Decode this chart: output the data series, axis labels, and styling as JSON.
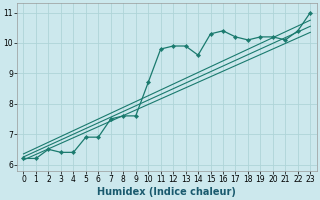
{
  "xlabel": "Humidex (Indice chaleur)",
  "bg_color": "#cce8ed",
  "line_color": "#1a7a6e",
  "grid_color": "#afd4d8",
  "xlim": [
    -0.5,
    23.5
  ],
  "ylim": [
    5.8,
    11.3
  ],
  "xticks": [
    0,
    1,
    2,
    3,
    4,
    5,
    6,
    7,
    8,
    9,
    10,
    11,
    12,
    13,
    14,
    15,
    16,
    17,
    18,
    19,
    20,
    21,
    22,
    23
  ],
  "yticks": [
    6,
    7,
    8,
    9,
    10,
    11
  ],
  "curve_x": [
    0,
    1,
    2,
    3,
    4,
    5,
    6,
    7,
    8,
    9,
    10,
    11,
    12,
    13,
    14,
    15,
    16,
    17,
    18,
    19,
    20,
    21,
    22,
    23
  ],
  "curve_y": [
    6.2,
    6.2,
    6.5,
    6.4,
    6.4,
    6.9,
    6.9,
    7.5,
    7.6,
    7.6,
    8.7,
    9.8,
    9.9,
    9.9,
    9.6,
    10.3,
    10.4,
    10.2,
    10.1,
    10.2,
    10.2,
    10.1,
    10.4,
    11.0
  ],
  "reg_lines": [
    {
      "x": [
        0,
        23
      ],
      "y": [
        6.15,
        10.35
      ]
    },
    {
      "x": [
        0,
        23
      ],
      "y": [
        6.25,
        10.55
      ]
    },
    {
      "x": [
        0,
        23
      ],
      "y": [
        6.35,
        10.75
      ]
    }
  ],
  "tick_fontsize": 5.5,
  "xlabel_fontsize": 7
}
